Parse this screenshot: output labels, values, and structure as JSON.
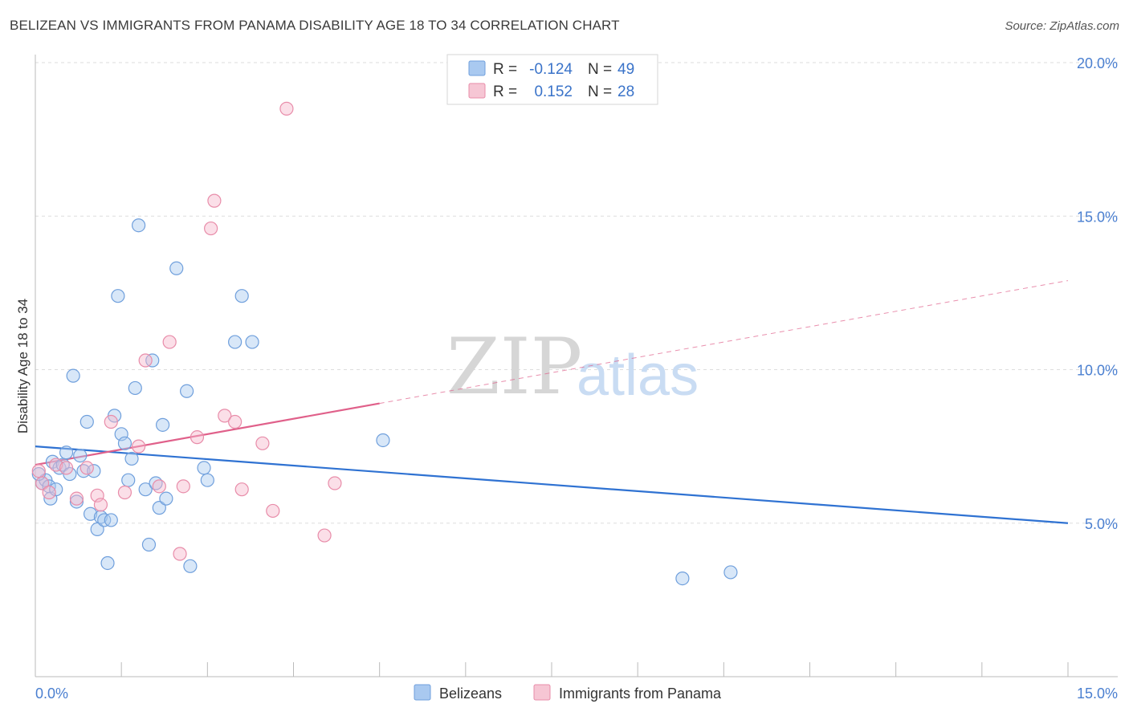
{
  "title": "BELIZEAN VS IMMIGRANTS FROM PANAMA DISABILITY AGE 18 TO 34 CORRELATION CHART",
  "source": "Source: ZipAtlas.com",
  "watermark": {
    "zip": "ZIP",
    "atlas": "atlas"
  },
  "colors": {
    "blue_fill": "#a9c9f0",
    "blue_stroke": "#6f9fdc",
    "blue_line": "#2f72d2",
    "pink_fill": "#f6b8cb",
    "pink_stroke": "#e88ca9",
    "pink_line": "#e0608a",
    "grid": "#dddddd",
    "tick_text": "#4a7fd0"
  },
  "legend": {
    "rows": [
      {
        "r_label": "R =",
        "r_value": "-0.124",
        "n_label": "N =",
        "n_value": "49",
        "series": "blue"
      },
      {
        "r_label": "R =",
        "r_value": "0.152",
        "n_label": "N =",
        "n_value": "28",
        "series": "pink"
      }
    ]
  },
  "chart_data": {
    "type": "scatter",
    "title": "BELIZEAN VS IMMIGRANTS FROM PANAMA DISABILITY AGE 18 TO 34 CORRELATION CHART",
    "xlabel": "",
    "ylabel": "Disability Age 18 to 34",
    "xlim": [
      0,
      15
    ],
    "ylim": [
      0,
      20
    ],
    "x_tick_labels": [
      "0.0%",
      "15.0%"
    ],
    "y_ticks": [
      5,
      10,
      15,
      20
    ],
    "y_tick_labels": [
      "5.0%",
      "10.0%",
      "15.0%",
      "20.0%"
    ],
    "series": [
      {
        "name": "Belizeans",
        "color": "blue",
        "points": [
          [
            0.1,
            6.3
          ],
          [
            0.15,
            6.4
          ],
          [
            0.2,
            6.2
          ],
          [
            0.22,
            5.8
          ],
          [
            0.25,
            7.0
          ],
          [
            0.3,
            6.1
          ],
          [
            0.35,
            6.8
          ],
          [
            0.4,
            6.9
          ],
          [
            0.45,
            7.3
          ],
          [
            0.5,
            6.6
          ],
          [
            0.55,
            9.8
          ],
          [
            0.6,
            5.7
          ],
          [
            0.65,
            7.2
          ],
          [
            0.7,
            6.7
          ],
          [
            0.75,
            8.3
          ],
          [
            0.8,
            5.3
          ],
          [
            0.85,
            6.7
          ],
          [
            0.9,
            4.8
          ],
          [
            0.95,
            5.2
          ],
          [
            1.0,
            5.1
          ],
          [
            1.05,
            3.7
          ],
          [
            1.1,
            5.1
          ],
          [
            1.15,
            8.5
          ],
          [
            1.2,
            12.4
          ],
          [
            1.25,
            7.9
          ],
          [
            1.3,
            7.6
          ],
          [
            1.35,
            6.4
          ],
          [
            1.4,
            7.1
          ],
          [
            1.45,
            9.4
          ],
          [
            1.5,
            14.7
          ],
          [
            1.6,
            6.1
          ],
          [
            1.65,
            4.3
          ],
          [
            1.7,
            10.3
          ],
          [
            1.75,
            6.3
          ],
          [
            1.8,
            5.5
          ],
          [
            1.85,
            8.2
          ],
          [
            1.9,
            5.8
          ],
          [
            2.05,
            13.3
          ],
          [
            2.2,
            9.3
          ],
          [
            2.25,
            3.6
          ],
          [
            2.45,
            6.8
          ],
          [
            2.5,
            6.4
          ],
          [
            2.9,
            10.9
          ],
          [
            3.0,
            12.4
          ],
          [
            3.15,
            10.9
          ],
          [
            5.05,
            7.7
          ],
          [
            9.4,
            3.2
          ],
          [
            10.1,
            3.4
          ],
          [
            0.05,
            6.6
          ]
        ]
      },
      {
        "name": "Immigrants from Panama",
        "color": "pink",
        "points": [
          [
            0.05,
            6.7
          ],
          [
            0.1,
            6.3
          ],
          [
            0.2,
            6.0
          ],
          [
            0.3,
            6.9
          ],
          [
            0.45,
            6.8
          ],
          [
            0.6,
            5.8
          ],
          [
            0.75,
            6.8
          ],
          [
            0.9,
            5.9
          ],
          [
            0.95,
            5.6
          ],
          [
            1.1,
            8.3
          ],
          [
            1.3,
            6.0
          ],
          [
            1.5,
            7.5
          ],
          [
            1.6,
            10.3
          ],
          [
            1.8,
            6.2
          ],
          [
            1.95,
            10.9
          ],
          [
            2.1,
            4.0
          ],
          [
            2.15,
            6.2
          ],
          [
            2.35,
            7.8
          ],
          [
            2.55,
            14.6
          ],
          [
            2.6,
            15.5
          ],
          [
            2.75,
            8.5
          ],
          [
            2.9,
            8.3
          ],
          [
            3.0,
            6.1
          ],
          [
            3.3,
            7.6
          ],
          [
            3.45,
            5.4
          ],
          [
            3.65,
            18.5
          ],
          [
            4.2,
            4.6
          ],
          [
            4.35,
            6.3
          ]
        ]
      }
    ],
    "trend_lines": [
      {
        "series": "Belizeans",
        "x0": 0,
        "y0": 7.5,
        "x1": 15,
        "y1": 5.0,
        "style": "solid"
      },
      {
        "series": "Immigrants from Panama",
        "x0": 0,
        "y0": 6.9,
        "x1": 5.0,
        "y1": 8.9,
        "style": "solid"
      },
      {
        "series": "Immigrants from Panama",
        "x0": 5.0,
        "y0": 8.9,
        "x1": 15,
        "y1": 12.9,
        "style": "dashed"
      }
    ],
    "legend": [
      "Belizeans",
      "Immigrants from Panama"
    ],
    "grid": true
  }
}
